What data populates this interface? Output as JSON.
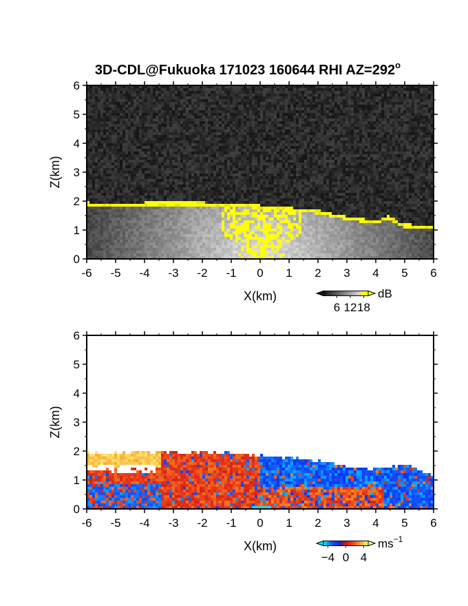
{
  "chart_data": [
    {
      "type": "heatmap",
      "title": "3D-CDL@Fukuoka 171023 160644 RHI AZ=292",
      "title_superscript": "o",
      "xlabel": "X(km)",
      "ylabel": "Z(km)",
      "xlim": [
        -6,
        6
      ],
      "ylim": [
        0,
        6
      ],
      "xticks": [
        -6,
        -5,
        -4,
        -3,
        -2,
        -1,
        0,
        1,
        2,
        3,
        4,
        5,
        6
      ],
      "yticks": [
        0,
        1,
        2,
        3,
        4,
        5,
        6
      ],
      "colorbar": {
        "unit": "dB",
        "ticks": [
          6,
          12,
          18
        ],
        "range": [
          0,
          20
        ],
        "colormap": "grayscale-yellow"
      },
      "boundary_top_km": [
        [
          -6,
          2.0
        ],
        [
          -5,
          1.98
        ],
        [
          -4,
          2.0
        ],
        [
          -3,
          2.0
        ],
        [
          -2,
          2.0
        ],
        [
          -1,
          1.98
        ],
        [
          0,
          1.9
        ],
        [
          1,
          1.82
        ],
        [
          2,
          1.72
        ],
        [
          3,
          1.5
        ],
        [
          4,
          1.38
        ],
        [
          4.4,
          1.55
        ],
        [
          4.9,
          1.25
        ],
        [
          6,
          1.2
        ]
      ],
      "field": "backscatter intensity",
      "background_noise_db": [
        0,
        6
      ],
      "saturated_color": "#ffff00"
    },
    {
      "type": "heatmap",
      "title": "",
      "xlabel": "X(km)",
      "ylabel": "Z(km)",
      "xlim": [
        -6,
        6
      ],
      "ylim": [
        0,
        6
      ],
      "xticks": [
        -6,
        -5,
        -4,
        -3,
        -2,
        -1,
        0,
        1,
        2,
        3,
        4,
        5,
        6
      ],
      "yticks": [
        0,
        1,
        2,
        3,
        4,
        5,
        6
      ],
      "colorbar": {
        "unit": "ms",
        "unit_superscript": "-1",
        "ticks": [
          -4,
          0,
          4
        ],
        "range": [
          -5,
          5
        ],
        "colormap": "cyan-blue-red-yellow"
      },
      "boundary_top_km": [
        [
          -6,
          2.0
        ],
        [
          -5,
          1.98
        ],
        [
          -4,
          2.0
        ],
        [
          -3,
          2.0
        ],
        [
          -2,
          2.0
        ],
        [
          -1,
          1.98
        ],
        [
          0,
          1.9
        ],
        [
          1,
          1.82
        ],
        [
          2,
          1.72
        ],
        [
          3,
          1.5
        ],
        [
          4,
          1.45
        ],
        [
          5,
          1.55
        ],
        [
          6,
          1.2
        ]
      ],
      "field": "radial velocity",
      "velocity_regions_ms": [
        {
          "x": [
            -6,
            -3.5
          ],
          "z": [
            1.5,
            2.0
          ],
          "value": 4.5
        },
        {
          "x": [
            -3.5,
            0
          ],
          "z": [
            0,
            2.0
          ],
          "value": 1.5
        },
        {
          "x": [
            0,
            6
          ],
          "z": [
            0.8,
            1.9
          ],
          "value": -3.5
        },
        {
          "x": [
            -5.5,
            -3.5
          ],
          "z": [
            0,
            0.9
          ],
          "value": -3.5
        },
        {
          "x": [
            0.5,
            4.5
          ],
          "z": [
            0,
            0.8
          ],
          "value": 2.0
        }
      ]
    }
  ]
}
